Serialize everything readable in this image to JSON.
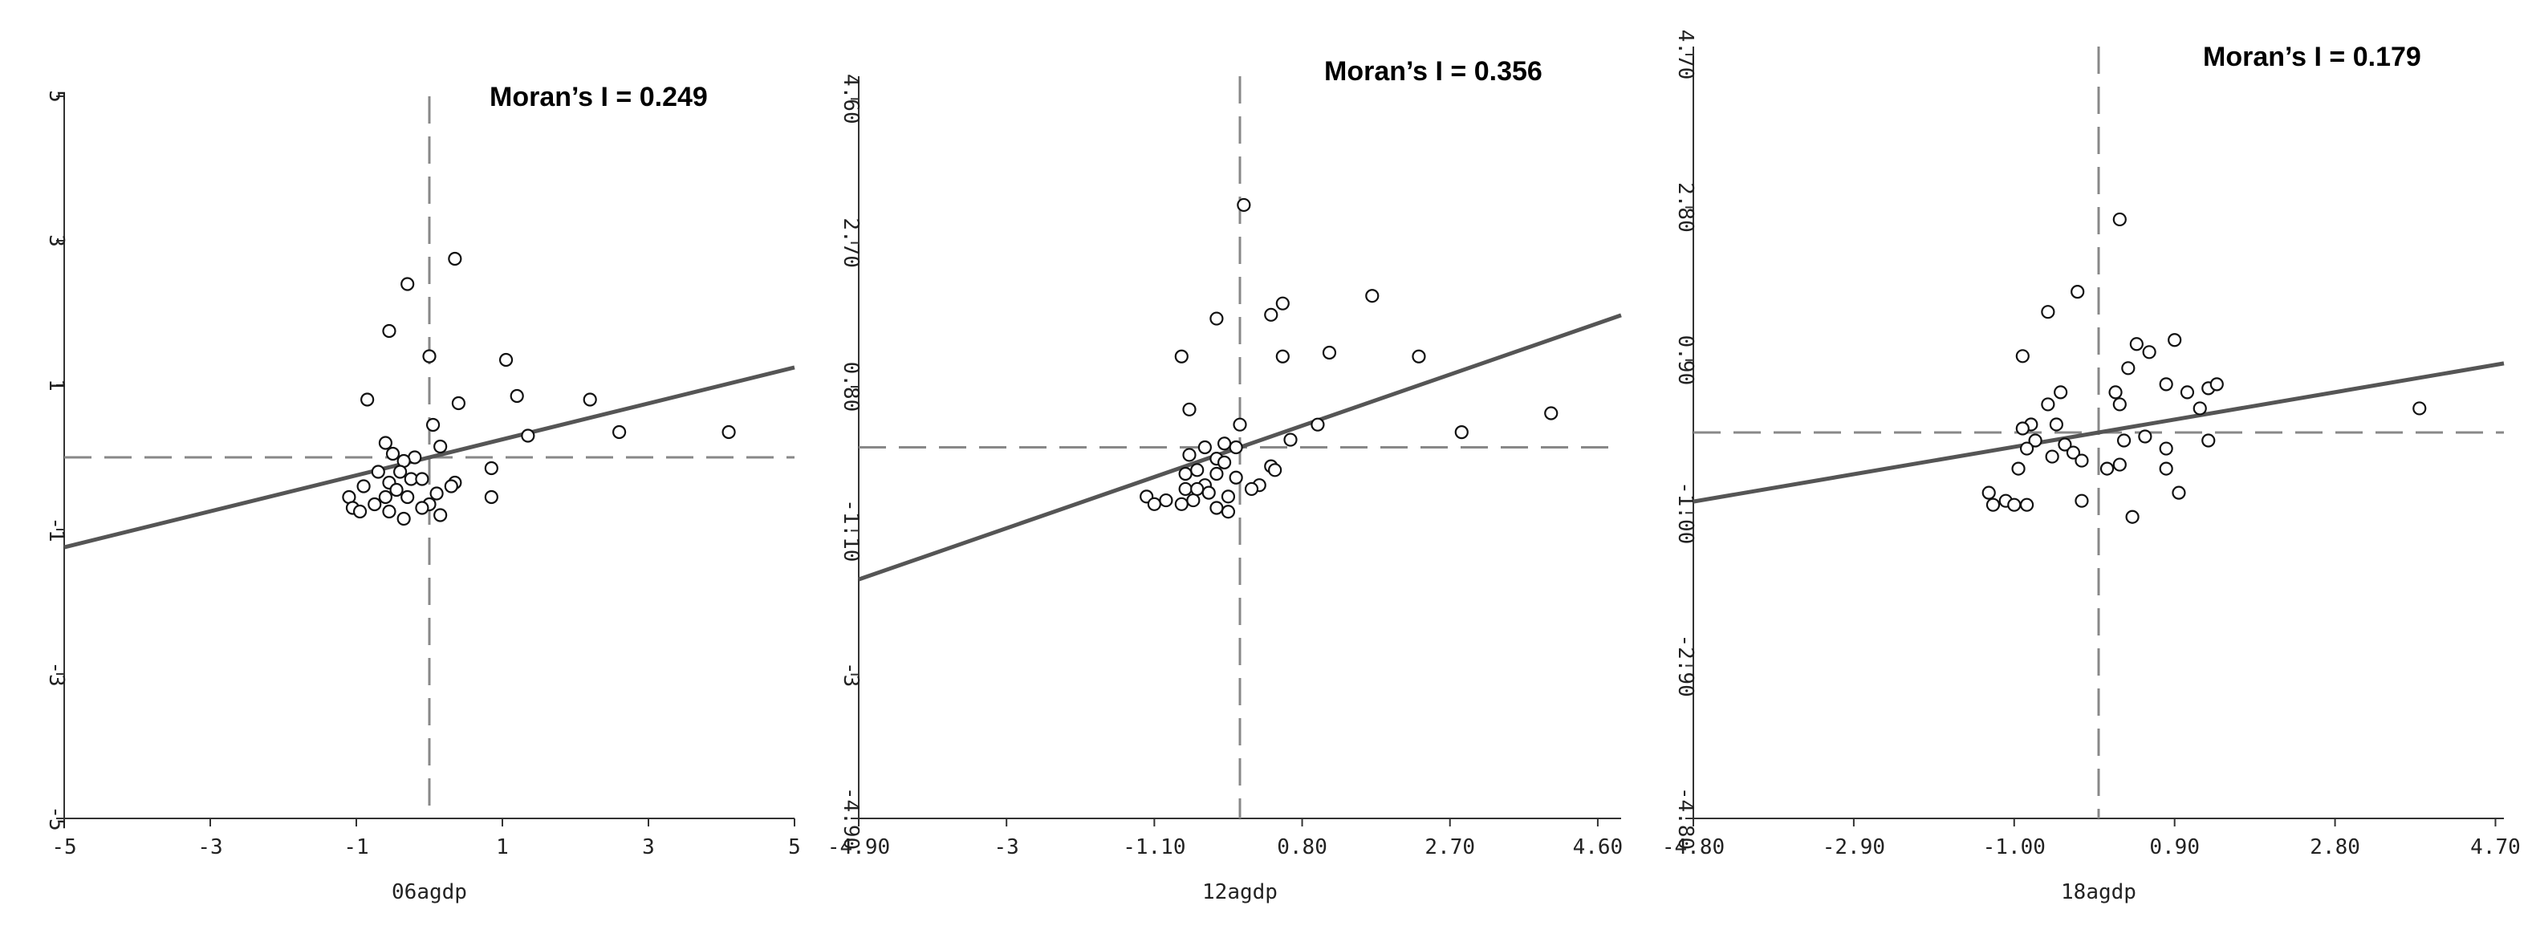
{
  "chart_data": [
    {
      "type": "scatter",
      "title": "",
      "annotation": "Moran’s I = 0.249",
      "xlabel": "06agdp",
      "ylabel": "",
      "xlim": [
        -5,
        5
      ],
      "ylim": [
        -5,
        5
      ],
      "xticks": [
        -5,
        -3,
        -1,
        1,
        3,
        5
      ],
      "xtick_labels": [
        "-5",
        "-3",
        "-1",
        "1",
        "3",
        "5"
      ],
      "yticks": [
        -5,
        -3,
        -1,
        1,
        3,
        5
      ],
      "ytick_labels": [
        "-5",
        "-3",
        "-1",
        "1",
        "3",
        "5"
      ],
      "regression": {
        "slope": 0.249,
        "intercept": 0
      },
      "reference_lines": {
        "x": 0,
        "y": 0
      },
      "points": [
        [
          -0.3,
          2.4
        ],
        [
          0.35,
          2.75
        ],
        [
          -0.55,
          1.75
        ],
        [
          0,
          1.4
        ],
        [
          1.05,
          1.35
        ],
        [
          -0.85,
          0.8
        ],
        [
          0.4,
          0.75
        ],
        [
          1.2,
          0.85
        ],
        [
          2.2,
          0.8
        ],
        [
          0.05,
          0.45
        ],
        [
          2.6,
          0.35
        ],
        [
          4.1,
          0.35
        ],
        [
          1.35,
          0.3
        ],
        [
          0.15,
          0.15
        ],
        [
          -0.6,
          0.2
        ],
        [
          -0.5,
          0.05
        ],
        [
          -0.2,
          0.0
        ],
        [
          -0.35,
          -0.05
        ],
        [
          0.85,
          -0.15
        ],
        [
          -0.7,
          -0.2
        ],
        [
          -0.4,
          -0.2
        ],
        [
          -0.25,
          -0.3
        ],
        [
          -0.1,
          -0.3
        ],
        [
          0.35,
          -0.35
        ],
        [
          -0.55,
          -0.35
        ],
        [
          -0.9,
          -0.4
        ],
        [
          0.3,
          -0.4
        ],
        [
          -0.45,
          -0.45
        ],
        [
          0.1,
          -0.5
        ],
        [
          -0.6,
          -0.55
        ],
        [
          -0.3,
          -0.55
        ],
        [
          0.85,
          -0.55
        ],
        [
          -1.1,
          -0.55
        ],
        [
          -0.75,
          -0.65
        ],
        [
          0.0,
          -0.65
        ],
        [
          -0.1,
          -0.7
        ],
        [
          -1.05,
          -0.7
        ],
        [
          -0.95,
          -0.75
        ],
        [
          -0.55,
          -0.75
        ],
        [
          0.15,
          -0.8
        ],
        [
          -0.35,
          -0.85
        ]
      ]
    },
    {
      "type": "scatter",
      "title": "",
      "annotation": "Moran’s I = 0.356",
      "xlabel": "12agdp",
      "ylabel": "",
      "xlim": [
        -4.9,
        4.9
      ],
      "ylim": [
        -4.9,
        4.9
      ],
      "xticks": [
        -4.9,
        -3,
        -1.1,
        0.8,
        2.7,
        4.6
      ],
      "xtick_labels": [
        "-4.90",
        "-3",
        "-1.10",
        "0.80",
        "2.70",
        "4.60"
      ],
      "yticks": [
        -4.9,
        -3,
        -1.1,
        0.8,
        2.7,
        4.6
      ],
      "ytick_labels": [
        "-4.90",
        "-3",
        "-1.10",
        "0.80",
        "2.70",
        "4.60"
      ],
      "regression": {
        "slope": 0.356,
        "intercept": 0
      },
      "reference_lines": {
        "x": 0,
        "y": 0
      },
      "points": [
        [
          0.05,
          3.2
        ],
        [
          0.55,
          1.9
        ],
        [
          0.4,
          1.75
        ],
        [
          -0.3,
          1.7
        ],
        [
          1.7,
          2.0
        ],
        [
          1.15,
          1.25
        ],
        [
          0.55,
          1.2
        ],
        [
          -0.75,
          1.2
        ],
        [
          2.3,
          1.2
        ],
        [
          4.0,
          0.45
        ],
        [
          -0.65,
          0.5
        ],
        [
          1.0,
          0.3
        ],
        [
          2.85,
          0.2
        ],
        [
          0.0,
          0.3
        ],
        [
          0.65,
          0.1
        ],
        [
          -0.2,
          0.05
        ],
        [
          -0.05,
          0.0
        ],
        [
          -0.45,
          0.0
        ],
        [
          -0.65,
          -0.1
        ],
        [
          -0.3,
          -0.15
        ],
        [
          -0.2,
          -0.2
        ],
        [
          0.4,
          -0.25
        ],
        [
          0.45,
          -0.3
        ],
        [
          -0.55,
          -0.3
        ],
        [
          -0.7,
          -0.35
        ],
        [
          -0.3,
          -0.35
        ],
        [
          -0.05,
          -0.4
        ],
        [
          -0.45,
          -0.5
        ],
        [
          0.25,
          -0.5
        ],
        [
          0.15,
          -0.55
        ],
        [
          -0.7,
          -0.55
        ],
        [
          -0.4,
          -0.6
        ],
        [
          -0.15,
          -0.65
        ],
        [
          -1.2,
          -0.65
        ],
        [
          -0.95,
          -0.7
        ],
        [
          -0.6,
          -0.7
        ],
        [
          -1.1,
          -0.75
        ],
        [
          -0.75,
          -0.75
        ],
        [
          -0.3,
          -0.8
        ],
        [
          -0.15,
          -0.85
        ],
        [
          -0.55,
          -0.55
        ]
      ]
    },
    {
      "type": "scatter",
      "title": "",
      "annotation": "Moran’s I = 0.179",
      "xlabel": "18agdp",
      "ylabel": "",
      "xlim": [
        -4.8,
        4.8
      ],
      "ylim": [
        -4.8,
        4.8
      ],
      "xticks": [
        -4.8,
        -2.9,
        -1.0,
        0.9,
        2.8,
        4.7
      ],
      "xtick_labels": [
        "-4.80",
        "-2.90",
        "-1.00",
        "0.90",
        "2.80",
        "4.70"
      ],
      "yticks": [
        -4.8,
        -2.9,
        -1.0,
        0.9,
        2.8,
        4.7
      ],
      "ytick_labels": [
        "-4.80",
        "-2.90",
        "-1.00",
        "0.90",
        "2.80",
        "4.70"
      ],
      "regression": {
        "slope": 0.179,
        "intercept": 0
      },
      "reference_lines": {
        "x": 0,
        "y": 0
      },
      "points": [
        [
          0.25,
          2.65
        ],
        [
          -0.25,
          1.75
        ],
        [
          -0.6,
          1.5
        ],
        [
          0.9,
          1.15
        ],
        [
          0.45,
          1.1
        ],
        [
          0.6,
          1.0
        ],
        [
          -0.9,
          0.95
        ],
        [
          0.35,
          0.8
        ],
        [
          0.8,
          0.6
        ],
        [
          1.3,
          0.55
        ],
        [
          1.4,
          0.6
        ],
        [
          -0.45,
          0.5
        ],
        [
          0.2,
          0.5
        ],
        [
          1.05,
          0.5
        ],
        [
          0.25,
          0.35
        ],
        [
          -0.6,
          0.35
        ],
        [
          1.2,
          0.3
        ],
        [
          3.8,
          0.3
        ],
        [
          -0.8,
          0.1
        ],
        [
          -0.5,
          0.1
        ],
        [
          -0.9,
          0.05
        ],
        [
          0.55,
          -0.05
        ],
        [
          1.3,
          -0.1
        ],
        [
          -0.75,
          -0.1
        ],
        [
          0.3,
          -0.1
        ],
        [
          -0.4,
          -0.15
        ],
        [
          -0.85,
          -0.2
        ],
        [
          -0.3,
          -0.25
        ],
        [
          0.8,
          -0.2
        ],
        [
          -0.55,
          -0.3
        ],
        [
          -0.2,
          -0.35
        ],
        [
          0.25,
          -0.4
        ],
        [
          0.1,
          -0.45
        ],
        [
          -0.95,
          -0.45
        ],
        [
          0.8,
          -0.45
        ],
        [
          0.95,
          -0.75
        ],
        [
          -1.3,
          -0.75
        ],
        [
          -0.2,
          -0.85
        ],
        [
          -1.1,
          -0.85
        ],
        [
          -1.25,
          -0.9
        ],
        [
          -1.0,
          -0.9
        ],
        [
          -0.85,
          -0.9
        ],
        [
          0.4,
          -1.05
        ]
      ]
    }
  ]
}
